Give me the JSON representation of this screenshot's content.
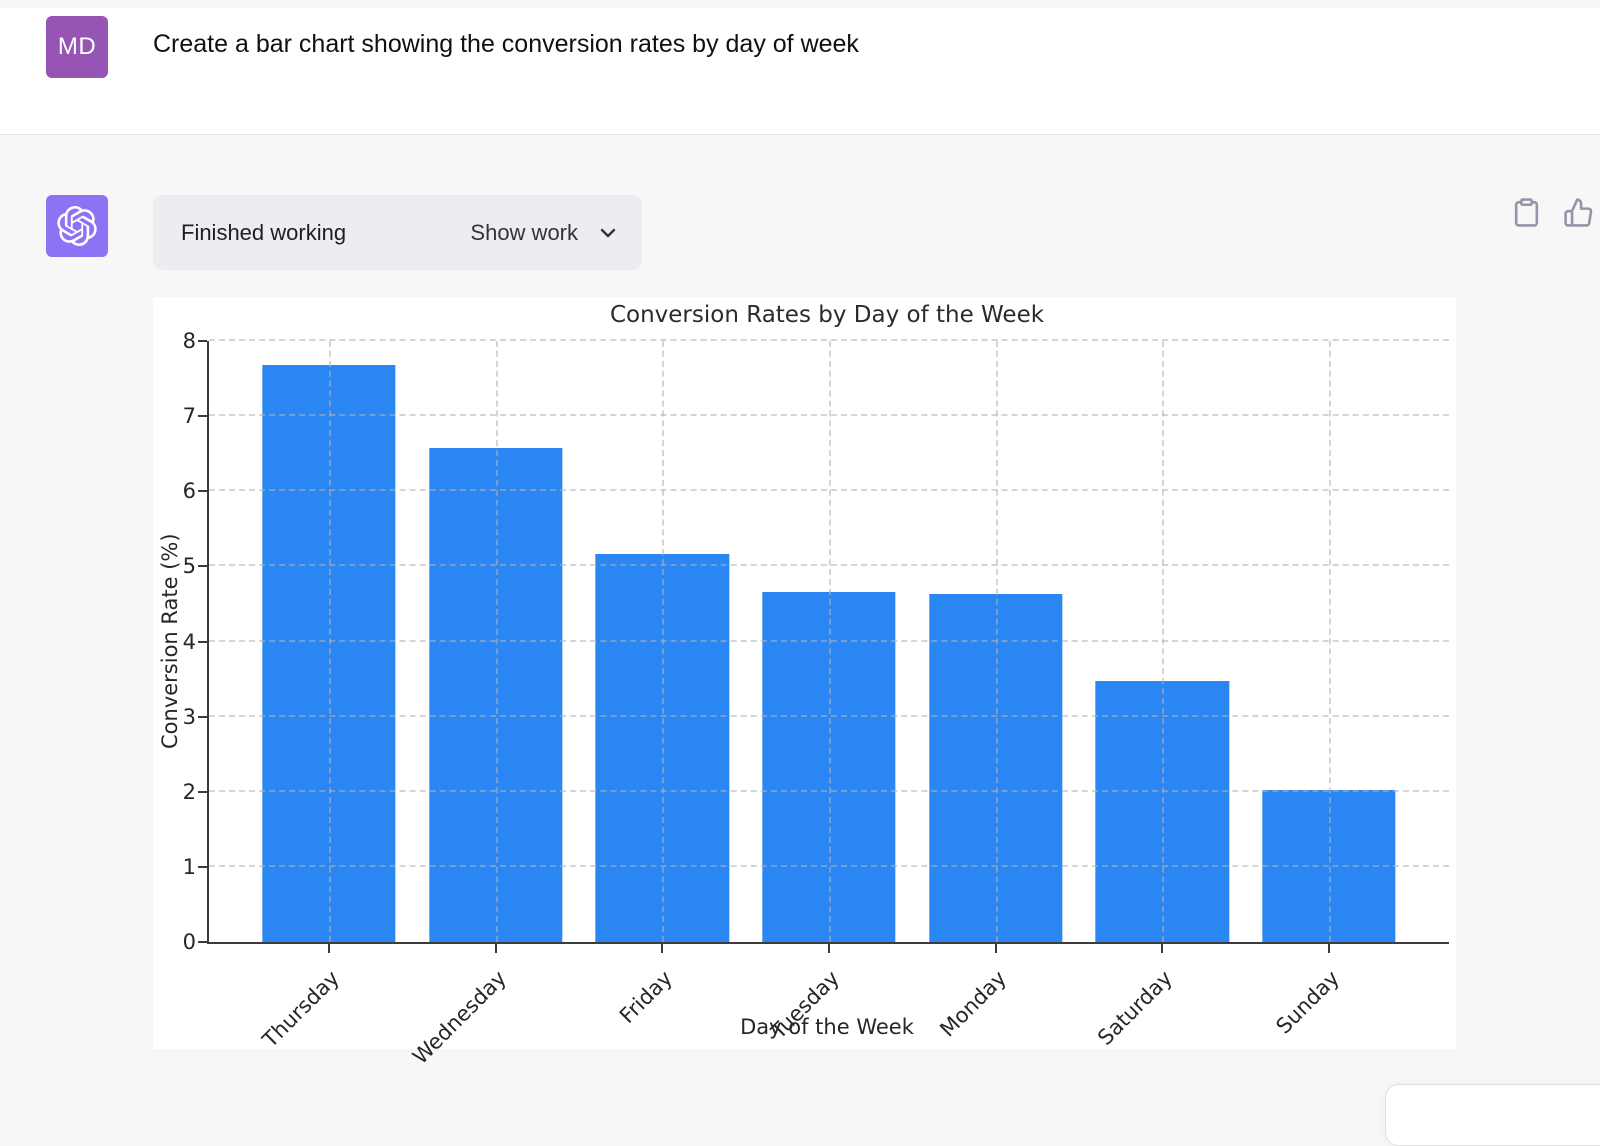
{
  "page": {
    "background": "#f7f7f8",
    "panel_background": "#ffffff"
  },
  "user_row": {
    "avatar": {
      "initials": "MD",
      "color": "#9655b4"
    },
    "message": "Create a bar chart showing the conversion rates by day of week"
  },
  "assistant_row": {
    "avatar": {
      "icon": "openai-logo-icon",
      "color": "#8d72f5"
    },
    "status_pill": {
      "background": "#ececf1",
      "status_label": "Finished working",
      "toggle_label": "Show work",
      "chevron_icon": "chevron-down-icon"
    },
    "actions": [
      {
        "icon": "clipboard-icon"
      },
      {
        "icon": "thumbs-up-icon"
      }
    ]
  },
  "chart_data": {
    "type": "bar",
    "title": "Conversion Rates by Day of the Week",
    "xlabel": "Day of the Week",
    "ylabel": "Conversion Rate (%)",
    "categories": [
      "Thursday",
      "Wednesday",
      "Friday",
      "Tuesday",
      "Monday",
      "Saturday",
      "Sunday"
    ],
    "values": [
      7.68,
      6.57,
      5.16,
      4.66,
      4.63,
      3.47,
      2.02
    ],
    "ylim": [
      0,
      8
    ],
    "y_ticks": [
      0,
      1,
      2,
      3,
      4,
      5,
      6,
      7,
      8
    ],
    "x_tick_rotation": 45,
    "bar_color": "#2a86f2",
    "grid": "dashed",
    "legend": "none"
  }
}
